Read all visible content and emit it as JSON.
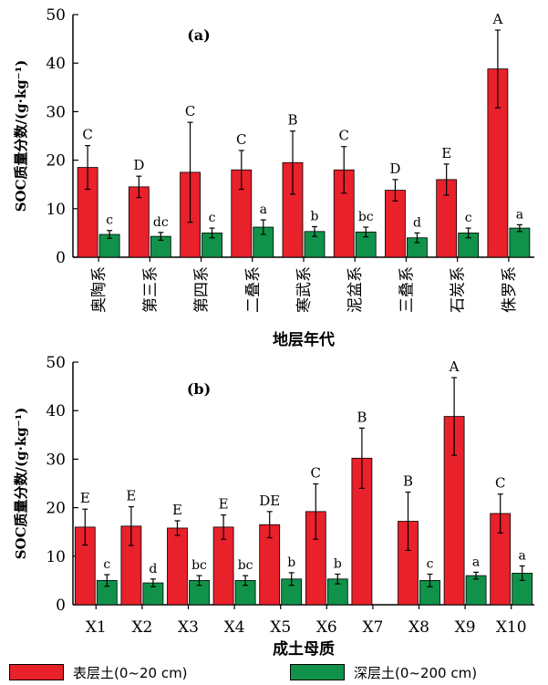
{
  "colors": {
    "surface": "#e8212b",
    "deep": "#11924a",
    "axis": "#000000"
  },
  "legend": {
    "surface_label": "表层土(0~20 cm)",
    "deep_label": "深层土(0~200 cm)"
  },
  "chart_data": [
    {
      "type": "bar",
      "panel_label": "(a)",
      "ylabel": "SOC质量分数/(g·kg⁻¹)",
      "xlabel": "地层年代",
      "ylim": [
        0,
        50
      ],
      "yticks": [
        "0",
        "10",
        "20",
        "30",
        "40",
        "50"
      ],
      "categories": [
        "奥陶系",
        "第三系",
        "第四系",
        "二叠系",
        "寒武系",
        "泥盆系",
        "三叠系",
        "石炭系",
        "侏罗系"
      ],
      "series": [
        {
          "name": "表层土(0~20 cm)",
          "color_key": "surface",
          "values": [
            18.5,
            14.5,
            17.5,
            18.0,
            19.5,
            18.0,
            13.8,
            16.0,
            38.8
          ],
          "errors": [
            4.5,
            2.2,
            10.3,
            4.0,
            6.5,
            4.8,
            2.2,
            3.2,
            8.0
          ],
          "letters": [
            "C",
            "D",
            "C",
            "C",
            "B",
            "C",
            "D",
            "E",
            "A"
          ]
        },
        {
          "name": "深层土(0~200 cm)",
          "color_key": "deep",
          "values": [
            4.7,
            4.3,
            5.0,
            6.2,
            5.3,
            5.2,
            4.0,
            5.0,
            6.0
          ],
          "errors": [
            0.8,
            0.8,
            1.0,
            1.5,
            1.0,
            1.0,
            1.0,
            1.0,
            0.7
          ],
          "letters": [
            "c",
            "dc",
            "c",
            "a",
            "b",
            "bc",
            "d",
            "c",
            "a"
          ]
        }
      ]
    },
    {
      "type": "bar",
      "panel_label": "(b)",
      "ylabel": "SOC质量分数/(g·kg⁻¹)",
      "xlabel": "成土母质",
      "ylim": [
        0,
        50
      ],
      "yticks": [
        "0",
        "10",
        "20",
        "30",
        "40",
        "50"
      ],
      "categories": [
        "X1",
        "X2",
        "X3",
        "X4",
        "X5",
        "X6",
        "X7",
        "X8",
        "X9",
        "X10"
      ],
      "series": [
        {
          "name": "表层土(0~20 cm)",
          "color_key": "surface",
          "values": [
            16.0,
            16.2,
            15.8,
            16.0,
            16.5,
            19.2,
            30.2,
            17.2,
            38.8,
            18.8
          ],
          "errors": [
            3.7,
            4.0,
            1.5,
            2.5,
            2.7,
            5.7,
            6.2,
            6.0,
            8.0,
            4.0
          ],
          "letters": [
            "E",
            "E",
            "E",
            "E",
            "DE",
            "C",
            "B",
            "B",
            "A",
            "C"
          ]
        },
        {
          "name": "深层土(0~200 cm)",
          "color_key": "deep",
          "values": [
            5.0,
            4.5,
            5.0,
            5.0,
            5.3,
            5.3,
            null,
            5.0,
            6.0,
            6.5
          ],
          "errors": [
            1.2,
            0.8,
            1.0,
            1.0,
            1.3,
            1.0,
            null,
            1.3,
            0.7,
            1.5
          ],
          "letters": [
            "c",
            "d",
            "bc",
            "bc",
            "b",
            "b",
            "",
            "c",
            "a",
            "a"
          ]
        }
      ]
    }
  ]
}
